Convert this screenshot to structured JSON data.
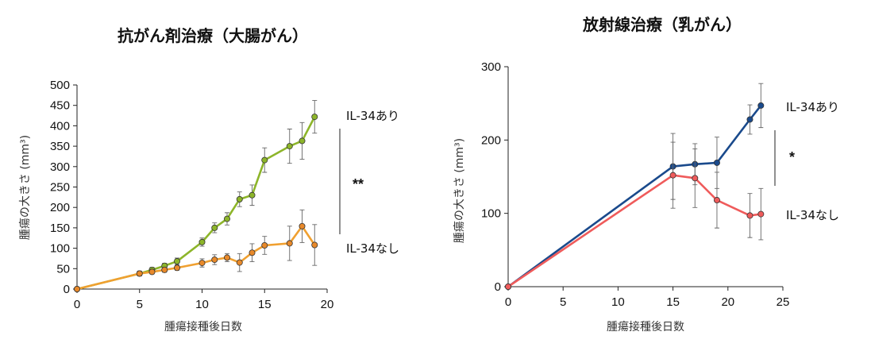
{
  "chart_data": [
    {
      "type": "line",
      "title": "抗がん剤治療（大腸がん）",
      "xlabel": "腫瘍接種後日数",
      "ylabel": "腫瘍の大きさ (mm³)",
      "xlim": [
        0,
        20
      ],
      "ylim": [
        0,
        500
      ],
      "xticks": [
        "0",
        "5",
        "10",
        "15",
        "20"
      ],
      "yticks": [
        "0",
        "50",
        "100",
        "150",
        "200",
        "250",
        "300",
        "350",
        "400",
        "450",
        "500"
      ],
      "significance": "**",
      "series": [
        {
          "name": "IL-34あり",
          "color": "#8db52a",
          "marker_color": "#8db52a",
          "x": [
            0,
            5,
            6,
            7,
            8,
            10,
            11,
            12,
            13,
            14,
            15,
            17,
            18,
            19
          ],
          "y": [
            0,
            38,
            47,
            57,
            68,
            115,
            150,
            172,
            220,
            230,
            316,
            350,
            363,
            422
          ],
          "err": [
            0,
            6,
            6,
            6,
            8,
            10,
            12,
            15,
            18,
            25,
            30,
            42,
            45,
            40
          ]
        },
        {
          "name": "IL-34なし",
          "color": "#f0a030",
          "marker_color": "#e8892a",
          "x": [
            0,
            5,
            6,
            7,
            8,
            10,
            11,
            12,
            13,
            14,
            15,
            17,
            18,
            19
          ],
          "y": [
            0,
            38,
            42,
            47,
            52,
            64,
            72,
            77,
            65,
            89,
            107,
            112,
            154,
            108
          ],
          "err": [
            0,
            5,
            5,
            6,
            6,
            10,
            12,
            10,
            22,
            22,
            22,
            42,
            40,
            50
          ]
        }
      ]
    },
    {
      "type": "line",
      "title": "放射線治療（乳がん）",
      "xlabel": "腫瘍接種後日数",
      "ylabel": "腫瘍の大きさ (mm³)",
      "xlim": [
        0,
        25
      ],
      "ylim": [
        0,
        300
      ],
      "xticks": [
        "0",
        "5",
        "10",
        "15",
        "20",
        "25"
      ],
      "yticks": [
        "0",
        "100",
        "200",
        "300"
      ],
      "significance": "*",
      "series": [
        {
          "name": "IL-34あり",
          "color": "#1a4a8c",
          "marker_color": "#1a4a8c",
          "x": [
            0,
            15,
            17,
            19,
            22,
            23
          ],
          "y": [
            0,
            164,
            167,
            169,
            228,
            247
          ],
          "err": [
            0,
            45,
            28,
            35,
            20,
            30
          ]
        },
        {
          "name": "IL-34なし",
          "color": "#ef5b5b",
          "marker_color": "#ef5b5b",
          "x": [
            0,
            15,
            17,
            19,
            22,
            23
          ],
          "y": [
            0,
            152,
            148,
            118,
            97,
            99
          ],
          "err": [
            0,
            45,
            40,
            38,
            30,
            35
          ]
        }
      ]
    }
  ]
}
